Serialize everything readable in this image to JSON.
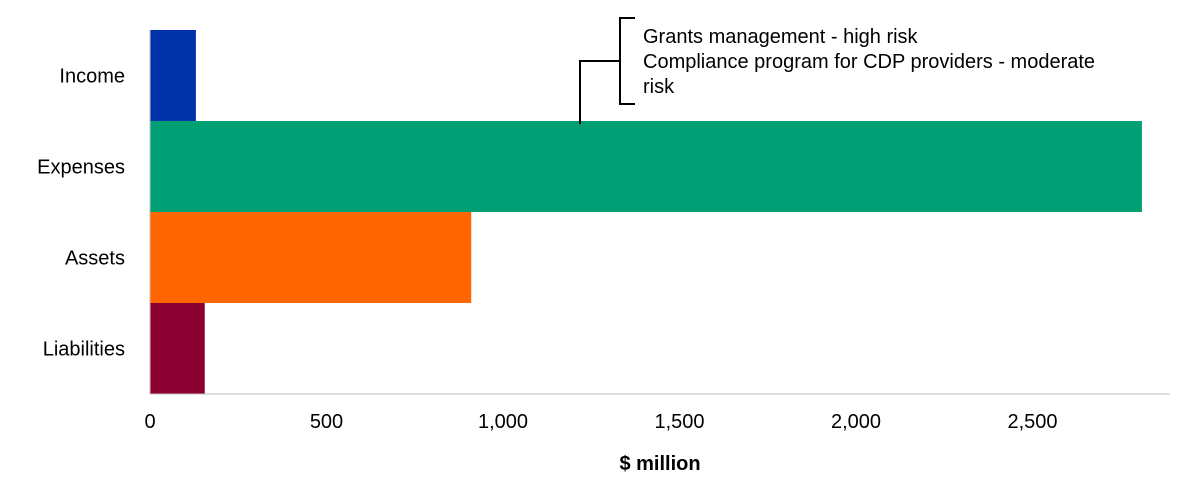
{
  "chart_data": {
    "type": "bar",
    "orientation": "horizontal",
    "categories": [
      "Income",
      "Expenses",
      "Assets",
      "Liabilities"
    ],
    "values": [
      130,
      2810,
      910,
      155
    ],
    "colors": [
      "#0033aa",
      "#00a074",
      "#ff6600",
      "#8b0030"
    ],
    "xlabel": "$ million",
    "xlim": [
      0,
      2900
    ],
    "xticks": [
      0,
      500,
      1000,
      1500,
      2000,
      2500
    ],
    "xtick_labels": [
      "0",
      "500",
      "1,000",
      "1,500",
      "2,000",
      "2,500"
    ],
    "grid": false,
    "annotation": {
      "target": "Expenses",
      "lines": [
        "Grants management - high risk",
        "Compliance program for CDP providers - moderate",
        "risk"
      ]
    }
  }
}
